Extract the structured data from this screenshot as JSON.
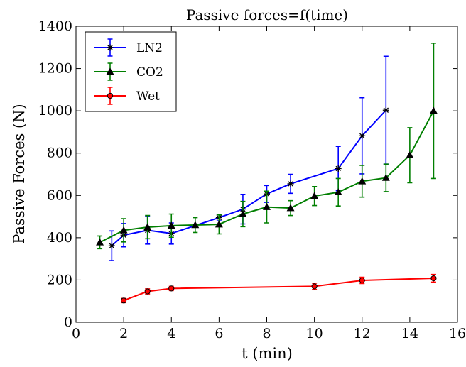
{
  "chart_data": {
    "type": "line",
    "title": "Passive forces=f(time)",
    "xlabel": "t (min)",
    "ylabel": "Passive Forces (N)",
    "xlim": [
      0,
      16
    ],
    "ylim": [
      0,
      1400
    ],
    "xticks": [
      0,
      2,
      4,
      6,
      8,
      10,
      12,
      14,
      16
    ],
    "yticks": [
      0,
      200,
      400,
      600,
      800,
      1000,
      1200,
      1400
    ],
    "grid": false,
    "legend": "top-left",
    "series": [
      {
        "name": "LN2",
        "color": "#0000ff",
        "marker": "star",
        "x": [
          1.5,
          2,
          3,
          4,
          6,
          7,
          8,
          9,
          11,
          12,
          13
        ],
        "y": [
          362,
          412,
          435,
          420,
          495,
          535,
          607,
          655,
          727,
          882,
          1003
        ],
        "err": [
          70,
          55,
          65,
          50,
          15,
          70,
          40,
          45,
          105,
          180,
          255
        ]
      },
      {
        "name": "CO2",
        "color": "#007f00",
        "marker": "triangle",
        "x": [
          1,
          2,
          3,
          4,
          5,
          6,
          7,
          8,
          9,
          10,
          11,
          12,
          13,
          14,
          15
        ],
        "y": [
          378,
          435,
          450,
          457,
          460,
          463,
          512,
          545,
          540,
          597,
          615,
          667,
          683,
          790,
          1000
        ],
        "err": [
          30,
          55,
          55,
          55,
          35,
          45,
          60,
          75,
          35,
          45,
          65,
          75,
          65,
          130,
          320
        ]
      },
      {
        "name": "Wet",
        "color": "#ff0000",
        "marker": "circle",
        "x": [
          2,
          3,
          4,
          10,
          12,
          15
        ],
        "y": [
          103,
          146,
          160,
          170,
          198,
          208
        ],
        "err": [
          10,
          12,
          10,
          15,
          15,
          18
        ]
      }
    ]
  }
}
